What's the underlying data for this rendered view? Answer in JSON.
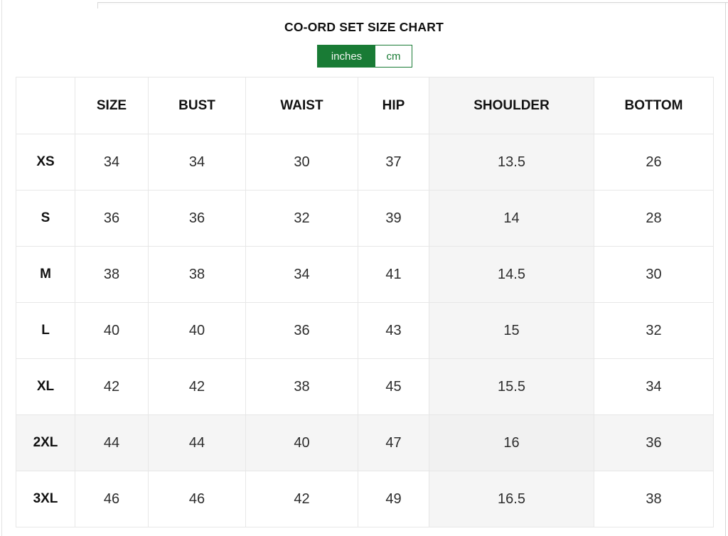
{
  "header": {
    "title": "CO-ORD SET SIZE CHART"
  },
  "unit_toggle": {
    "options": [
      {
        "label": "inches",
        "selected": true
      },
      {
        "label": "cm",
        "selected": false
      }
    ]
  },
  "size_chart": {
    "columns": [
      "",
      "SIZE",
      "BUST",
      "WAIST",
      "HIP",
      "SHOULDER",
      "BOTTOM"
    ],
    "highlighted_column": "SHOULDER",
    "highlighted_row": "2XL",
    "rows": [
      {
        "label": "XS",
        "values": [
          "34",
          "34",
          "30",
          "37",
          "13.5",
          "26"
        ]
      },
      {
        "label": "S",
        "values": [
          "36",
          "36",
          "32",
          "39",
          "14",
          "28"
        ]
      },
      {
        "label": "M",
        "values": [
          "38",
          "38",
          "34",
          "41",
          "14.5",
          "30"
        ]
      },
      {
        "label": "L",
        "values": [
          "40",
          "40",
          "36",
          "43",
          "15",
          "32"
        ]
      },
      {
        "label": "XL",
        "values": [
          "42",
          "42",
          "38",
          "45",
          "15.5",
          "34"
        ]
      },
      {
        "label": "2XL",
        "values": [
          "44",
          "44",
          "40",
          "47",
          "16",
          "36"
        ]
      },
      {
        "label": "3XL",
        "values": [
          "46",
          "46",
          "42",
          "49",
          "16.5",
          "38"
        ]
      }
    ]
  },
  "colors": {
    "accent_green": "#197b35",
    "highlight_bg": "#f5f5f5"
  }
}
